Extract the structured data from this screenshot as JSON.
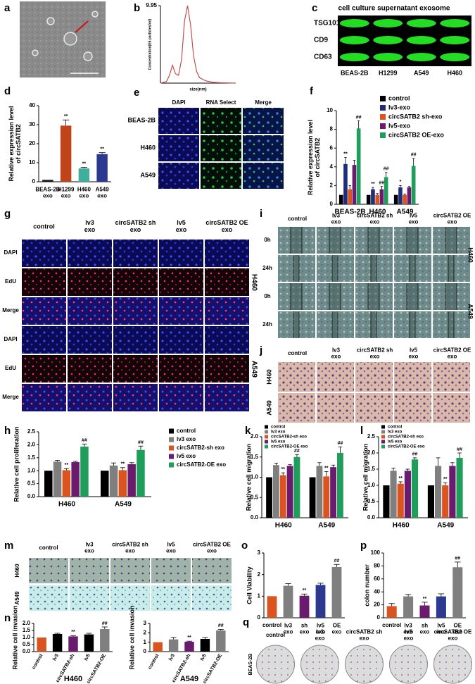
{
  "figures": {
    "a": {
      "label": "a"
    },
    "c": {
      "label": "c",
      "title": "cell culture supernatant exosome",
      "rows": [
        "TSG101",
        "CD9",
        "CD63"
      ],
      "columns": [
        "BEAS-2B",
        "H1299",
        "A549",
        "H460"
      ]
    },
    "e": {
      "label": "e",
      "columns": [
        "DAPI",
        "RNA Select",
        "Merge"
      ],
      "rows": [
        "BEAS-2B",
        "H460",
        "A549"
      ]
    },
    "g": {
      "label": "g",
      "columns": [
        "control",
        "lv3\nexo",
        "circSATB2 sh\nexo",
        "lv5\nexo",
        "circSATB2 OE\nexo"
      ],
      "rows": [
        "DAPI",
        "EdU",
        "Merge",
        "DAPI",
        "EdU",
        "Merge"
      ],
      "groups": [
        "H460",
        "A549"
      ]
    },
    "i": {
      "label": "i",
      "columns": [
        "control",
        "lv3\nexo",
        "circSATB2 sh\nexo",
        "lv5\nexo",
        "circSATB2 OE\nexo"
      ],
      "rows": [
        "0h",
        "24h",
        "0h",
        "24h"
      ],
      "groups": [
        "H460",
        "A549"
      ]
    },
    "j": {
      "label": "j",
      "columns": [
        "control",
        "lv3\nexo",
        "circSATB2 sh\nexo",
        "lv5\nexo",
        "circSATB2 OE\nexo"
      ],
      "rows": [
        "H460",
        "A549"
      ]
    },
    "m": {
      "label": "m",
      "columns": [
        "control",
        "lv3\nexo",
        "circSATB2 sh\nexo",
        "lv5\nexo",
        "circSATB2 OE\nexo"
      ],
      "rows": [
        "H460",
        "A549"
      ]
    },
    "q": {
      "label": "q",
      "columns": [
        "control",
        "lv3\nexo",
        "circSATB2 sh\nexo",
        "lv5\nexo",
        "circSATB2 OE\nexo"
      ],
      "rows": [
        "BEAS-2B"
      ]
    }
  },
  "chart_data": [
    {
      "type": "line",
      "label": "b",
      "y_label": "Concentration(E6 particles/ml)",
      "x_label": "size(nm)",
      "x": [
        0,
        40,
        60,
        80,
        100,
        120,
        140,
        160,
        180,
        200,
        220,
        240,
        260,
        300,
        350,
        400,
        500
      ],
      "values": [
        0,
        0.2,
        1.0,
        2.3,
        1.2,
        1.0,
        3.0,
        8.0,
        9.95,
        7.5,
        3.5,
        1.5,
        0.7,
        0.3,
        0.1,
        0.05,
        0
      ],
      "color": "#c0504d",
      "xlim": [
        0,
        500
      ],
      "ylim": [
        0,
        9.95
      ],
      "yticks": [
        9.95
      ]
    },
    {
      "type": "bar",
      "label": "d",
      "y_label": "Relative expression level\nof circSATB2",
      "categories": [
        "BEAS-2B\nexo",
        "H1299\nexo",
        "H460\nexo",
        "A549\nexo"
      ],
      "values": [
        1,
        29.5,
        7,
        14.5
      ],
      "errors": [
        0,
        3,
        0.6,
        0.8
      ],
      "significance": [
        null,
        "**",
        "**",
        "**"
      ],
      "colors": [
        "#1a1a1a",
        "#c0441a",
        "#3fae9a",
        "#2b3990"
      ],
      "ylim": [
        0,
        40
      ],
      "yticks": [
        0,
        10,
        20,
        30,
        40
      ]
    },
    {
      "type": "bar",
      "label": "f",
      "y_label": "Relative expression level\nof circSATB2",
      "categories": [
        "BEAS-2B",
        "H460",
        "A549"
      ],
      "ylim": [
        0,
        10
      ],
      "yticks": [
        0,
        2,
        4,
        6,
        8,
        10
      ],
      "series": [
        {
          "name": "control",
          "color": "#000000",
          "values": [
            1,
            1,
            1
          ],
          "errors": [
            0,
            0,
            0
          ]
        },
        {
          "name": "lv3-exo",
          "color": "#1f2d7a",
          "values": [
            4.3,
            1.6,
            1.8
          ],
          "errors": [
            0.7,
            0.2,
            0.2
          ],
          "significance": [
            "**",
            "**",
            "*"
          ]
        },
        {
          "name": "circSATB2 sh-exo",
          "color": "#d9541e",
          "values": [
            1.6,
            1.0,
            1.0
          ],
          "errors": [
            0.4,
            0.15,
            0.1
          ]
        },
        {
          "name": "lv5-exo",
          "color": "#6a1b6e",
          "values": [
            4.2,
            1.6,
            1.8
          ],
          "errors": [
            0.5,
            0.3,
            0.1
          ],
          "significance": [
            null,
            "##",
            null
          ]
        },
        {
          "name": "circSATB2 OE-exo",
          "color": "#1e9e5a",
          "values": [
            8.1,
            2.9,
            4.1
          ],
          "errors": [
            0.8,
            0.5,
            0.8
          ],
          "significance": [
            "##",
            "##",
            "##"
          ]
        }
      ]
    },
    {
      "type": "bar",
      "label": "h",
      "y_label": "Relative cell proliferation",
      "categories": [
        "H460",
        "A549"
      ],
      "ylim": [
        0,
        2.5
      ],
      "yticks": [
        {
          "value": 0,
          "label": "0.0"
        },
        0.5,
        {
          "value": 1,
          "label": "1.0"
        },
        1.5,
        {
          "value": 2,
          "label": "2.0"
        },
        2.5
      ],
      "series": [
        {
          "name": "control",
          "color": "#000000",
          "values": [
            1,
            1
          ],
          "errors": [
            0,
            0
          ]
        },
        {
          "name": "lv3 exo",
          "color": "#7f7f7f",
          "values": [
            1.35,
            1.2
          ],
          "errors": [
            0.05,
            0.1
          ]
        },
        {
          "name": "circSATB2-sh exo",
          "color": "#d9541e",
          "values": [
            1.02,
            1.02
          ],
          "errors": [
            0.06,
            0.1
          ],
          "significance": [
            "**",
            "**"
          ]
        },
        {
          "name": "lv5 exo",
          "color": "#6a1b6e",
          "values": [
            1.33,
            1.25
          ],
          "errors": [
            0.03,
            0.06
          ]
        },
        {
          "name": "circSATB2-OE exo",
          "color": "#1e9e5a",
          "values": [
            1.93,
            1.8
          ],
          "errors": [
            0.1,
            0.15
          ],
          "significance": [
            "##",
            "##"
          ]
        }
      ]
    },
    {
      "type": "bar",
      "label": "k",
      "y_label": "Relative cell migration",
      "categories": [
        "H460",
        "A549"
      ],
      "ylim": [
        0,
        2
      ],
      "yticks": [
        {
          "value": 0,
          "label": "0.0"
        },
        0.5,
        {
          "value": 1,
          "label": "1.0"
        },
        1.5,
        {
          "value": 2,
          "label": "2.0"
        }
      ],
      "series": [
        {
          "name": "control",
          "color": "#000000",
          "values": [
            1,
            1
          ],
          "errors": [
            0,
            0
          ]
        },
        {
          "name": "lv3 exo",
          "color": "#7f7f7f",
          "values": [
            1.3,
            1.28
          ],
          "errors": [
            0.05,
            0.08
          ]
        },
        {
          "name": "circSATB2-sh exo",
          "color": "#d9541e",
          "values": [
            1.05,
            1.02
          ],
          "errors": [
            0.06,
            0.12
          ],
          "significance": [
            "**",
            "**"
          ]
        },
        {
          "name": "lv5 exo",
          "color": "#6a1b6e",
          "values": [
            1.28,
            1.25
          ],
          "errors": [
            0.03,
            0.05
          ]
        },
        {
          "name": "circSATB2-OE exo",
          "color": "#1e9e5a",
          "values": [
            1.5,
            1.6
          ],
          "errors": [
            0.06,
            0.15
          ],
          "significance": [
            "##",
            "##"
          ]
        }
      ]
    },
    {
      "type": "bar",
      "label": "l",
      "y_label": "Relative cell migration",
      "categories": [
        "H460",
        "A549"
      ],
      "ylim": [
        0,
        2.5
      ],
      "yticks": [
        {
          "value": 0,
          "label": "0.0"
        },
        0.5,
        {
          "value": 1,
          "label": "1.0"
        },
        1.5,
        {
          "value": 2,
          "label": "2.0"
        },
        2.5
      ],
      "series": [
        {
          "name": "control",
          "color": "#000000",
          "values": [
            1,
            1
          ],
          "errors": [
            0,
            0
          ]
        },
        {
          "name": "lv3 exo",
          "color": "#7f7f7f",
          "values": [
            1.45,
            1.6
          ],
          "errors": [
            0.08,
            0.25
          ]
        },
        {
          "name": "circSATB2-sh exo",
          "color": "#d9541e",
          "values": [
            1.05,
            1.0
          ],
          "errors": [
            0.06,
            0.08
          ],
          "significance": [
            "**",
            "**"
          ]
        },
        {
          "name": "lv5 exo",
          "color": "#6a1b6e",
          "values": [
            1.45,
            1.6
          ],
          "errors": [
            0.05,
            0.1
          ]
        },
        {
          "name": "circSATB2-OE exo",
          "color": "#1e9e5a",
          "values": [
            1.8,
            1.85
          ],
          "errors": [
            0.05,
            0.15
          ],
          "significance": [
            "##",
            "##"
          ]
        }
      ]
    },
    {
      "type": "bar",
      "label": "n",
      "y_label": "Relative cell invasion",
      "x_label": "H460",
      "categories": [
        "control",
        "lv3",
        "circSATB2-sh",
        "lv5",
        "circSATB2-OE"
      ],
      "values": [
        1,
        1.25,
        1.08,
        1.22,
        1.6
      ],
      "errors": [
        0,
        0.05,
        0.06,
        0.08,
        0.15
      ],
      "significance": [
        null,
        null,
        "**",
        null,
        "##"
      ],
      "colors": [
        "#d9541e",
        "#000000",
        "#6a1b6e",
        "#000000",
        "#7f7f7f"
      ],
      "ylim": [
        0,
        2
      ],
      "yticks": [
        {
          "value": 0,
          "label": "0.0"
        },
        0.5,
        {
          "value": 1,
          "label": "1.0"
        },
        1.5,
        {
          "value": 2,
          "label": "2.0"
        }
      ]
    },
    {
      "type": "bar",
      "y_label": "Relative cell invasion",
      "x_label": "A549",
      "categories": [
        "control",
        "lv3",
        "circSATB2-sh",
        "lv5",
        "circSATB2-OE"
      ],
      "values": [
        1,
        1.3,
        1.05,
        1.35,
        2.25
      ],
      "errors": [
        0,
        0.2,
        0.06,
        0.15,
        0.12
      ],
      "significance": [
        null,
        null,
        "**",
        null,
        "##"
      ],
      "colors": [
        "#d9541e",
        "#7f7f7f",
        "#6a1b6e",
        "#000000",
        "#7f7f7f"
      ],
      "ylim": [
        0,
        3
      ],
      "yticks": [
        0,
        1,
        2,
        3
      ]
    },
    {
      "type": "bar",
      "label": "o",
      "y_label": "Cell Viability",
      "categories": [
        "control",
        "lv3\nexo",
        "sh\nexo",
        "lv5\nexo",
        "OE\nexo"
      ],
      "values": [
        1,
        1.48,
        1.02,
        1.52,
        2.35
      ],
      "errors": [
        0,
        0.1,
        0.08,
        0.08,
        0.12
      ],
      "significance": [
        null,
        null,
        "**",
        null,
        "##"
      ],
      "colors": [
        "#d9541e",
        "#7f7f7f",
        "#6a1b6e",
        "#2b3990",
        "#7f7f7f"
      ],
      "ylim": [
        0,
        3
      ],
      "yticks": [
        0,
        1,
        2,
        3
      ]
    },
    {
      "type": "bar",
      "label": "p",
      "y_label": "colon number",
      "categories": [
        "control",
        "lv3\nexo",
        "sh\nexo",
        "lv5\nexo",
        "OE\nexo"
      ],
      "values": [
        18,
        33,
        19,
        33,
        78
      ],
      "errors": [
        4,
        3,
        5,
        4,
        8
      ],
      "significance": [
        null,
        null,
        "**",
        null,
        "##"
      ],
      "colors": [
        "#d9541e",
        "#7f7f7f",
        "#6a1b6e",
        "#2b3990",
        "#7f7f7f"
      ],
      "ylim": [
        0,
        100
      ],
      "yticks": [
        0,
        20,
        40,
        60,
        80,
        100
      ]
    }
  ]
}
